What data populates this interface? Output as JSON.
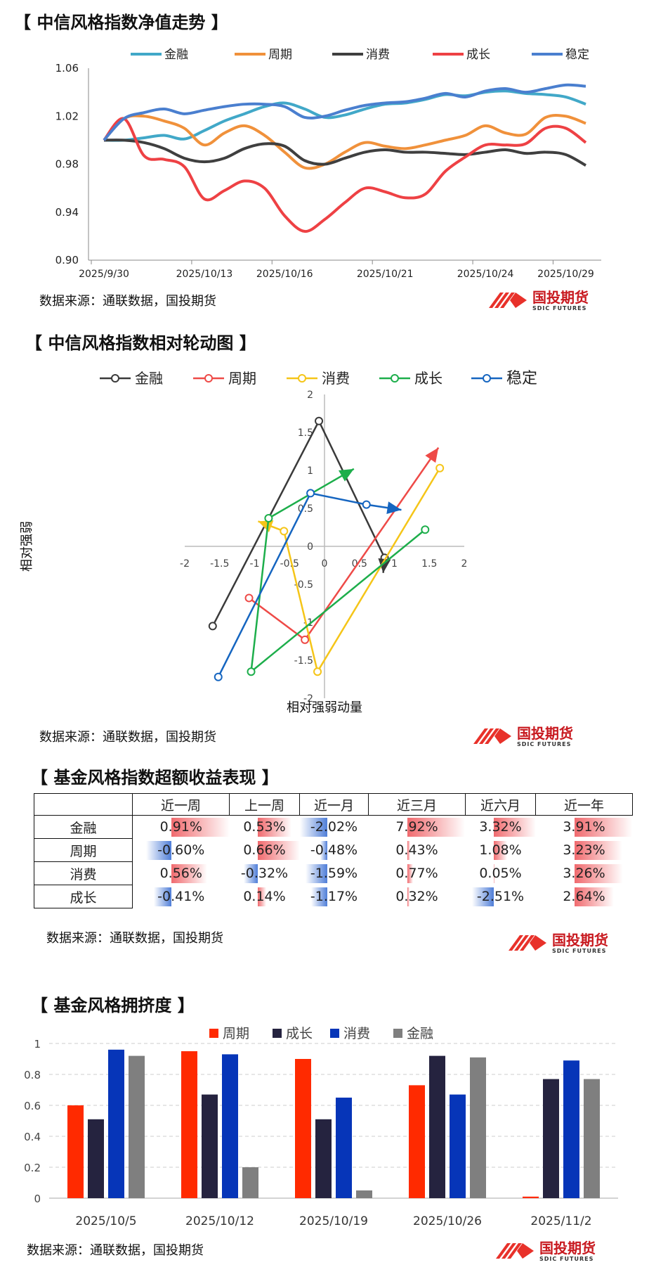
{
  "sections": {
    "nav_title": "【 中信风格指数净值走势 】",
    "rotation_title": "【 中信风格指数相对轮动图 】",
    "excess_title": "【 基金风格指数超额收益表现 】",
    "crowding_title": "【 基金风格拥挤度 】"
  },
  "source_text": "数据来源：通联数据，国投期货",
  "logo": {
    "name_cn": "国投期货",
    "name_en": "SDIC FUTURES",
    "color": "#E8312A"
  },
  "chart_data": [
    {
      "id": "nav",
      "type": "line",
      "title": "",
      "xlabel": "",
      "ylabel": "",
      "x_ticks": [
        "2025/9/30",
        "2025/10/13",
        "2025/10/16",
        "2025/10/21",
        "2025/10/24",
        "2025/10/29"
      ],
      "ylim": [
        0.9,
        1.06
      ],
      "y_ticks": [
        0.9,
        0.94,
        0.98,
        1.02,
        1.06
      ],
      "grid": false,
      "legend": "top",
      "series": [
        {
          "name": "金融",
          "color": "#41A8C8",
          "values": [
            1.0,
            1.0,
            1.002,
            1.004,
            1.001,
            1.008,
            1.016,
            1.022,
            1.028,
            1.031,
            1.026,
            1.019,
            1.021,
            1.026,
            1.03,
            1.031,
            1.034,
            1.038,
            1.037,
            1.04,
            1.041,
            1.039,
            1.038,
            1.036,
            1.03
          ]
        },
        {
          "name": "周期",
          "color": "#F0913B",
          "values": [
            1.0,
            1.018,
            1.02,
            1.016,
            1.01,
            0.996,
            1.006,
            1.012,
            1.004,
            0.99,
            0.977,
            0.98,
            0.99,
            0.998,
            0.995,
            0.993,
            0.996,
            1.0,
            1.004,
            1.012,
            1.006,
            1.005,
            1.019,
            1.02,
            1.014
          ]
        },
        {
          "name": "消费",
          "color": "#3F3F3F",
          "values": [
            1.0,
            1.0,
            0.998,
            0.993,
            0.985,
            0.982,
            0.985,
            0.993,
            0.997,
            0.995,
            0.983,
            0.98,
            0.985,
            0.99,
            0.992,
            0.99,
            0.99,
            0.989,
            0.988,
            0.99,
            0.992,
            0.989,
            0.99,
            0.988,
            0.979
          ]
        },
        {
          "name": "成长",
          "color": "#EE4144",
          "values": [
            1.0,
            1.018,
            0.987,
            0.984,
            0.978,
            0.951,
            0.958,
            0.966,
            0.96,
            0.937,
            0.924,
            0.934,
            0.948,
            0.96,
            0.957,
            0.952,
            0.955,
            0.974,
            0.986,
            0.996,
            0.996,
            0.997,
            1.01,
            1.01,
            0.998
          ]
        },
        {
          "name": "稳定",
          "color": "#4A7FCF",
          "values": [
            1.0,
            1.018,
            1.023,
            1.026,
            1.022,
            1.025,
            1.028,
            1.03,
            1.03,
            1.028,
            1.019,
            1.02,
            1.025,
            1.029,
            1.031,
            1.032,
            1.035,
            1.039,
            1.036,
            1.041,
            1.043,
            1.04,
            1.043,
            1.046,
            1.045
          ]
        }
      ]
    },
    {
      "id": "rotation",
      "type": "scatter",
      "title": "",
      "xlabel": "相对强弱动量",
      "ylabel": "相对强弱",
      "xlim": [
        -2,
        2
      ],
      "ylim": [
        -2,
        2
      ],
      "x_ticks": [
        -2,
        -1.5,
        -1,
        -0.5,
        0,
        0.5,
        1,
        1.5,
        2
      ],
      "y_ticks": [
        -2,
        -1.5,
        -1,
        -0.5,
        0,
        0.5,
        1,
        1.5,
        2
      ],
      "legend": "top",
      "series": [
        {
          "name": "金融",
          "color": "#3A3A3A",
          "points": [
            [
              -1.6,
              -1.05
            ],
            [
              -0.08,
              1.65
            ],
            [
              0.86,
              -0.15
            ],
            [
              0.84,
              -0.35
            ]
          ]
        },
        {
          "name": "周期",
          "color": "#EE4A47",
          "points": [
            [
              -1.08,
              -0.68
            ],
            [
              -0.28,
              -1.23
            ],
            [
              1.63,
              1.3
            ]
          ]
        },
        {
          "name": "消费",
          "color": "#F5C518",
          "points": [
            [
              1.65,
              1.03
            ],
            [
              -0.1,
              -1.65
            ],
            [
              -0.58,
              0.2
            ],
            [
              -0.95,
              0.33
            ]
          ]
        },
        {
          "name": "成长",
          "color": "#1DAE4B",
          "points": [
            [
              1.44,
              0.22
            ],
            [
              -1.05,
              -1.65
            ],
            [
              -0.8,
              0.37
            ],
            [
              0.42,
              1.02
            ]
          ]
        },
        {
          "name": "稳定",
          "color": "#1565C0",
          "points": [
            [
              -1.52,
              -1.72
            ],
            [
              -0.2,
              0.7
            ],
            [
              0.6,
              0.55
            ],
            [
              1.1,
              0.48
            ]
          ]
        }
      ]
    },
    {
      "id": "excess",
      "type": "table",
      "columns": [
        "",
        "近一周",
        "上一周",
        "近一月",
        "近三月",
        "近六月",
        "近一年"
      ],
      "rows": [
        {
          "label": "金融",
          "cells": [
            "0.91%",
            "0.53%",
            "-2.02%",
            "7.92%",
            "3.32%",
            "3.91%"
          ],
          "values": [
            0.91,
            0.53,
            -2.02,
            7.92,
            3.32,
            3.91
          ]
        },
        {
          "label": "周期",
          "cells": [
            "-0.60%",
            "0.66%",
            "-0.48%",
            "0.43%",
            "1.08%",
            "3.23%"
          ],
          "values": [
            -0.6,
            0.66,
            -0.48,
            0.43,
            1.08,
            3.23
          ]
        },
        {
          "label": "消费",
          "cells": [
            "0.56%",
            "-0.32%",
            "-1.59%",
            "0.77%",
            "0.05%",
            "3.26%"
          ],
          "values": [
            0.56,
            -0.32,
            -1.59,
            0.77,
            0.05,
            3.26
          ]
        },
        {
          "label": "成长",
          "cells": [
            "-0.41%",
            "0.14%",
            "-1.17%",
            "0.32%",
            "-2.51%",
            "2.64%"
          ],
          "values": [
            -0.41,
            0.14,
            -1.17,
            0.32,
            -2.51,
            2.64
          ]
        }
      ],
      "colors": {
        "positive": "#F06A6E",
        "negative": "#4F7ED8"
      }
    },
    {
      "id": "crowding",
      "type": "bar",
      "title": "",
      "xlabel": "",
      "ylabel": "",
      "categories": [
        "2025/10/5",
        "2025/10/12",
        "2025/10/19",
        "2025/10/26",
        "2025/11/2"
      ],
      "ylim": [
        0,
        1
      ],
      "y_ticks": [
        "0",
        "0.2",
        "0.4",
        "0.6",
        "0.8",
        "1"
      ],
      "grid": true,
      "legend": "top",
      "series": [
        {
          "name": "周期",
          "color": "#FF2A00",
          "values": [
            0.6,
            0.95,
            0.9,
            0.73,
            0.01
          ]
        },
        {
          "name": "成长",
          "color": "#25233F",
          "values": [
            0.51,
            0.67,
            0.51,
            0.92,
            0.77
          ]
        },
        {
          "name": "消费",
          "color": "#0635B8",
          "values": [
            0.96,
            0.93,
            0.65,
            0.67,
            0.89
          ]
        },
        {
          "name": "金融",
          "color": "#7F7F7F",
          "values": [
            0.92,
            0.2,
            0.05,
            0.91,
            0.77
          ]
        }
      ]
    }
  ]
}
